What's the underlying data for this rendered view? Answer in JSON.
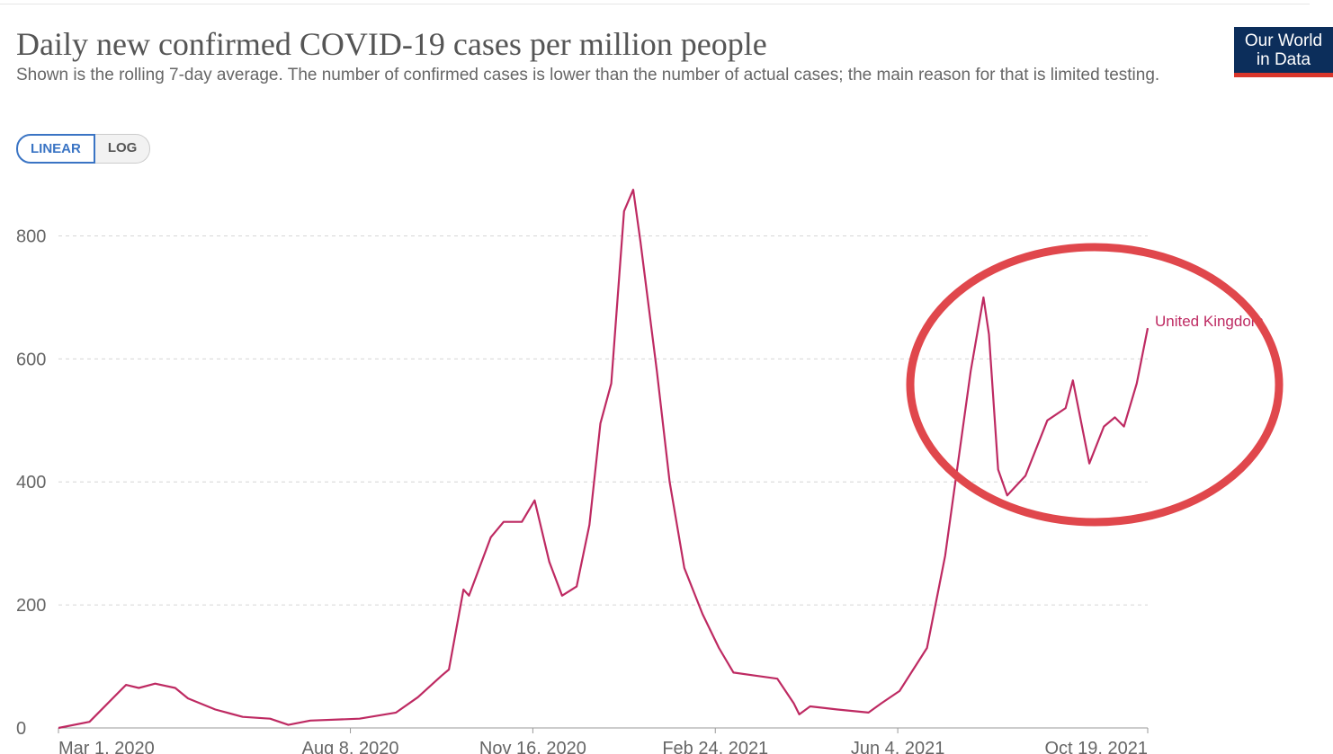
{
  "logo": [
    "Our World",
    "in Data"
  ],
  "scale_buttons": [
    "LINEAR",
    "LOG"
  ],
  "chart_data": {
    "type": "line",
    "title": "Daily new confirmed COVID-19 cases per million people",
    "subtitle": "Shown is the rolling 7-day average. The number of confirmed cases is lower than the number of actual cases; the main reason for that is limited testing.",
    "log_scale": false,
    "grid": true,
    "x": [
      "2020-03-01",
      "2020-03-18",
      "2020-04-07",
      "2020-04-14",
      "2020-04-23",
      "2020-05-04",
      "2020-05-11",
      "2020-05-26",
      "2020-06-10",
      "2020-06-25",
      "2020-07-05",
      "2020-07-17",
      "2020-08-13",
      "2020-09-02",
      "2020-09-14",
      "2020-09-27",
      "2020-10-01",
      "2020-10-09",
      "2020-10-12",
      "2020-10-24",
      "2020-10-31",
      "2020-11-10",
      "2020-11-17",
      "2020-11-25",
      "2020-12-02",
      "2020-12-10",
      "2020-12-17",
      "2020-12-23",
      "2020-12-29",
      "2021-01-05",
      "2021-01-10",
      "2021-01-14",
      "2021-01-23",
      "2021-01-30",
      "2021-02-07",
      "2021-02-17",
      "2021-02-26",
      "2021-03-06",
      "2021-03-18",
      "2021-03-30",
      "2021-04-08",
      "2021-04-11",
      "2021-04-17",
      "2021-05-02",
      "2021-05-19",
      "2021-05-26",
      "2021-06-05",
      "2021-06-20",
      "2021-06-30",
      "2021-07-07",
      "2021-07-14",
      "2021-07-21",
      "2021-07-24",
      "2021-07-29",
      "2021-08-03",
      "2021-08-13",
      "2021-08-25",
      "2021-09-04",
      "2021-09-08",
      "2021-09-17",
      "2021-09-25",
      "2021-10-01",
      "2021-10-06",
      "2021-10-13",
      "2021-10-19"
    ],
    "series": [
      {
        "name": "United Kingdom",
        "color": "#be2a62",
        "values": [
          0,
          10,
          70,
          65,
          72,
          65,
          48,
          30,
          18,
          15,
          5,
          12,
          15,
          25,
          50,
          85,
          95,
          225,
          215,
          310,
          335,
          335,
          370,
          270,
          215,
          230,
          330,
          495,
          560,
          840,
          875,
          790,
          580,
          400,
          260,
          185,
          130,
          90,
          85,
          80,
          40,
          22,
          35,
          30,
          25,
          40,
          60,
          130,
          280,
          430,
          580,
          700,
          640,
          420,
          378,
          410,
          500,
          520,
          565,
          430,
          490,
          505,
          490,
          560,
          650
        ]
      }
    ],
    "xlim": [
      "2020-03-01",
      "2021-10-19"
    ],
    "xticks": [
      {
        "value": "2020-03-01",
        "label": "Mar 1, 2020"
      },
      {
        "value": "2020-08-08",
        "label": "Aug 8, 2020"
      },
      {
        "value": "2020-11-16",
        "label": "Nov 16, 2020"
      },
      {
        "value": "2021-02-24",
        "label": "Feb 24, 2021"
      },
      {
        "value": "2021-06-04",
        "label": "Jun 4, 2021"
      },
      {
        "value": "2021-10-19",
        "label": "Oct 19, 2021"
      }
    ],
    "ylim": [
      0,
      900
    ],
    "yticks": [
      0,
      200,
      400,
      600,
      800
    ]
  }
}
